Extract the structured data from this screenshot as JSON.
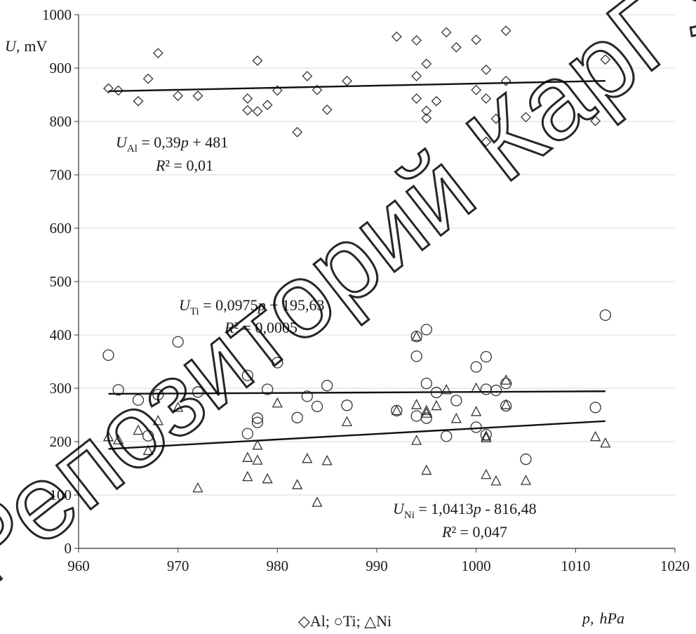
{
  "chart_data": {
    "type": "scatter",
    "title": "",
    "xlabel": "p, hPa",
    "xlabel_main": "p,",
    "xlabel_unit": "hPa",
    "ylabel": "U, mV",
    "ylabel_main": "U,",
    "ylabel_unit": "mV",
    "xlim": [
      960,
      1020
    ],
    "ylim": [
      0,
      1000
    ],
    "xticks": [
      "960",
      "970",
      "980",
      "990",
      "1000",
      "1010",
      "1020"
    ],
    "yticks": [
      "0",
      "100",
      "200",
      "300",
      "400",
      "500",
      "600",
      "700",
      "800",
      "900",
      "1000"
    ],
    "grid": "horizontal",
    "legend": {
      "placement": "bottom-center",
      "text": "◇Al; ○Ti; △Ni"
    },
    "series": [
      {
        "name": "Al",
        "marker": "diamond",
        "points": [
          [
            963,
            862
          ],
          [
            964,
            858
          ],
          [
            966,
            838
          ],
          [
            967,
            880
          ],
          [
            968,
            928
          ],
          [
            970,
            848
          ],
          [
            972,
            848
          ],
          [
            977,
            843
          ],
          [
            977,
            821
          ],
          [
            978,
            914
          ],
          [
            978,
            819
          ],
          [
            979,
            831
          ],
          [
            980,
            858
          ],
          [
            982,
            780
          ],
          [
            983,
            885
          ],
          [
            984,
            859
          ],
          [
            985,
            822
          ],
          [
            987,
            876
          ],
          [
            992,
            959
          ],
          [
            994,
            952
          ],
          [
            994,
            885
          ],
          [
            994,
            843
          ],
          [
            995,
            908
          ],
          [
            995,
            820
          ],
          [
            995,
            806
          ],
          [
            996,
            838
          ],
          [
            997,
            967
          ],
          [
            998,
            939
          ],
          [
            1000,
            953
          ],
          [
            1000,
            859
          ],
          [
            1001,
            897
          ],
          [
            1001,
            843
          ],
          [
            1001,
            762
          ],
          [
            1002,
            805
          ],
          [
            1003,
            970
          ],
          [
            1003,
            876
          ],
          [
            1005,
            808
          ],
          [
            1012,
            801
          ],
          [
            1013,
            916
          ]
        ],
        "trend": {
          "x": [
            963,
            1013
          ],
          "y": [
            856.6,
            876.1
          ]
        }
      },
      {
        "name": "Ti",
        "marker": "circle",
        "points": [
          [
            963,
            362
          ],
          [
            964,
            297
          ],
          [
            966,
            278
          ],
          [
            967,
            211
          ],
          [
            968,
            288
          ],
          [
            970,
            387
          ],
          [
            972,
            293
          ],
          [
            977,
            324
          ],
          [
            977,
            215
          ],
          [
            978,
            244
          ],
          [
            978,
            236
          ],
          [
            979,
            298
          ],
          [
            980,
            348
          ],
          [
            982,
            245
          ],
          [
            983,
            285
          ],
          [
            984,
            266
          ],
          [
            985,
            305
          ],
          [
            987,
            268
          ],
          [
            992,
            258
          ],
          [
            994,
            397
          ],
          [
            994,
            360
          ],
          [
            994,
            248
          ],
          [
            995,
            410
          ],
          [
            995,
            309
          ],
          [
            995,
            244
          ],
          [
            996,
            292
          ],
          [
            997,
            210
          ],
          [
            998,
            277
          ],
          [
            1000,
            340
          ],
          [
            1000,
            227
          ],
          [
            1001,
            359
          ],
          [
            1001,
            298
          ],
          [
            1001,
            213
          ],
          [
            1002,
            296
          ],
          [
            1003,
            309
          ],
          [
            1003,
            267
          ],
          [
            1005,
            167
          ],
          [
            1012,
            264
          ],
          [
            1013,
            437
          ]
        ],
        "trend": {
          "x": [
            963,
            1013
          ],
          "y": [
            289.5,
            294.4
          ]
        }
      },
      {
        "name": "Ni",
        "marker": "triangle",
        "points": [
          [
            963,
            209
          ],
          [
            964,
            203
          ],
          [
            966,
            221
          ],
          [
            967,
            183
          ],
          [
            968,
            239
          ],
          [
            970,
            264
          ],
          [
            972,
            113
          ],
          [
            977,
            170
          ],
          [
            977,
            134
          ],
          [
            978,
            193
          ],
          [
            978,
            165
          ],
          [
            979,
            130
          ],
          [
            980,
            272
          ],
          [
            982,
            119
          ],
          [
            983,
            168
          ],
          [
            984,
            86
          ],
          [
            985,
            164
          ],
          [
            987,
            237
          ],
          [
            992,
            258
          ],
          [
            994,
            397
          ],
          [
            994,
            269
          ],
          [
            994,
            202
          ],
          [
            995,
            258
          ],
          [
            995,
            253
          ],
          [
            995,
            146
          ],
          [
            996,
            267
          ],
          [
            997,
            297
          ],
          [
            998,
            243
          ],
          [
            1000,
            300
          ],
          [
            1000,
            256
          ],
          [
            1001,
            210
          ],
          [
            1001,
            207
          ],
          [
            1001,
            138
          ],
          [
            1002,
            126
          ],
          [
            1003,
            315
          ],
          [
            1003,
            269
          ],
          [
            1005,
            127
          ],
          [
            1012,
            209
          ],
          [
            1013,
            197
          ]
        ],
        "trend": {
          "x": [
            963,
            1013
          ],
          "y": [
            186.3,
            238.4
          ]
        }
      }
    ],
    "annotations": [
      {
        "id": "al",
        "var": "U",
        "sub": "Al",
        "rhs_a": " = 0,39",
        "rhs_b": " + 481",
        "pvar": "p",
        "r2_label": "R",
        "r2_value": "² = 0,01"
      },
      {
        "id": "ti",
        "var": "U",
        "sub": "Ti",
        "rhs_a": " = 0,0975",
        "rhs_b": " + 195,63",
        "pvar": "p",
        "r2_label": "R",
        "r2_value": "² = 0,0005"
      },
      {
        "id": "ni",
        "var": "U",
        "sub": "Ni",
        "rhs_a": " = 1,0413",
        "rhs_b": " - 816,48",
        "pvar": "p",
        "r2_label": "R",
        "r2_value": "² = 0,047"
      }
    ],
    "colors": {
      "marker": "#333333",
      "trend": "#111111",
      "grid": "#d9d9d9",
      "axis": "#333333"
    }
  },
  "watermark": {
    "text": "Репозиторий КарГУ",
    "color": "#000000"
  }
}
